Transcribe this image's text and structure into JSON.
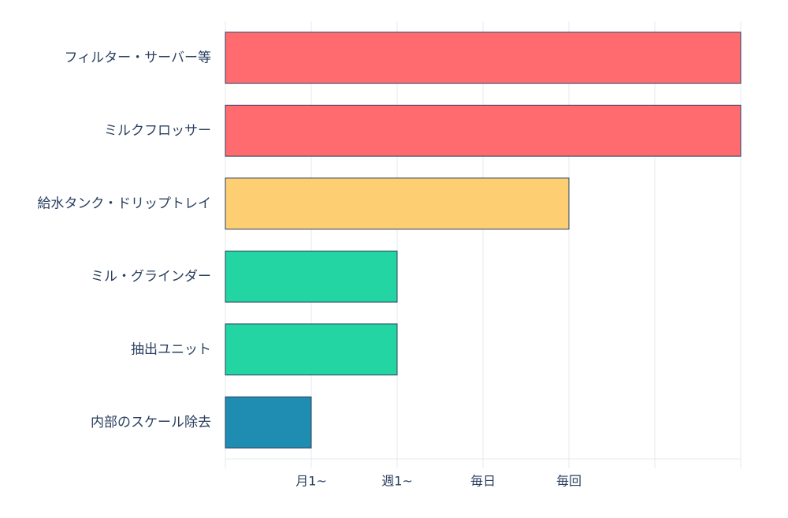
{
  "chart_data": {
    "type": "bar",
    "orientation": "horizontal",
    "title": "",
    "xlabel": "",
    "ylabel": "",
    "categories": [
      "フィルター・サーバー等",
      "ミルクフロッサー",
      "給水タンク・ドリップトレイ",
      "ミル・グラインダー",
      "抽出ユニット",
      "内部のスケール除去"
    ],
    "values": [
      6,
      6,
      4,
      2,
      2,
      1
    ],
    "colors": [
      "#ff6b6f",
      "#ff6b6f",
      "#fdcf72",
      "#23d5a3",
      "#23d5a3",
      "#1f8cb1"
    ],
    "xlim": [
      0,
      6
    ],
    "x_ticks": [
      {
        "value": 1,
        "label": "月1~"
      },
      {
        "value": 2,
        "label": "週1~"
      },
      {
        "value": 3,
        "label": "毎日"
      },
      {
        "value": 4,
        "label": "毎回"
      },
      {
        "value": 5,
        "label": ""
      },
      {
        "value": 6,
        "label": ""
      }
    ],
    "grid": true,
    "legend": "none"
  }
}
